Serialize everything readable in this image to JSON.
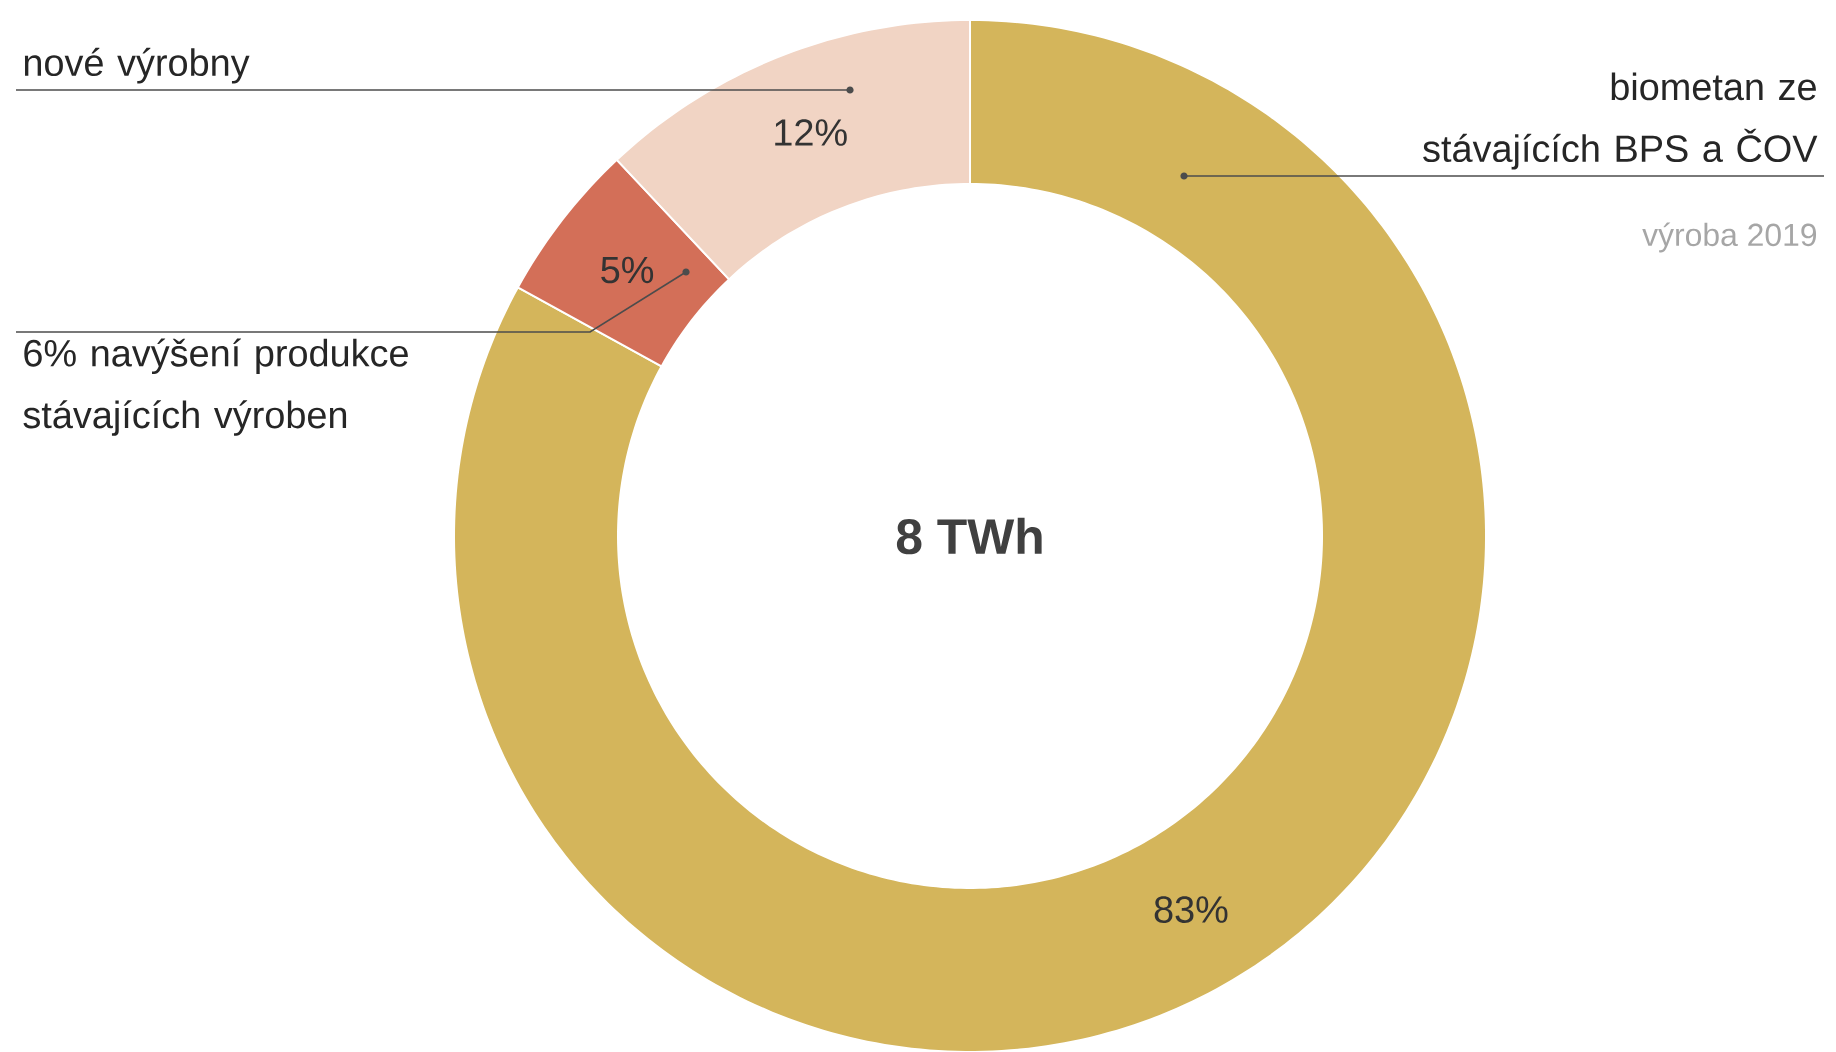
{
  "chart_data": {
    "type": "donut",
    "categories": [
      "biometan ze stávajících BPS a ČOV",
      "6% navýšení produkce stávajících výroben",
      "nové výrobny"
    ],
    "values": [
      83,
      5,
      12
    ],
    "value_labels": [
      "83%",
      "5%",
      "12%"
    ],
    "colors": [
      "#d4b55b",
      "#d36f58",
      "#f1d4c4"
    ],
    "annotations": [
      "8 TWh",
      "výroba 2019"
    ]
  }
}
